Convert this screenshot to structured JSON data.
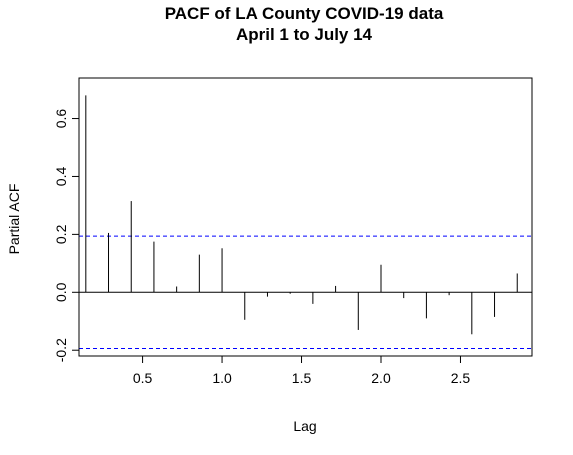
{
  "chart_data": {
    "type": "bar",
    "title_line1": "PACF of LA County COVID-19 data",
    "title_line2": "April 1 to July 14",
    "xlabel": "Lag",
    "ylabel": "Partial ACF",
    "xlim": [
      0.1,
      2.95
    ],
    "ylim": [
      -0.22,
      0.74
    ],
    "x_ticks": [
      0.5,
      1.0,
      1.5,
      2.0,
      2.5
    ],
    "x_tick_labels": [
      "0.5",
      "1.0",
      "1.5",
      "2.0",
      "2.5"
    ],
    "y_ticks": [
      -0.2,
      0.0,
      0.2,
      0.4,
      0.6
    ],
    "y_tick_labels": [
      "-0.2",
      "0.0",
      "0.2",
      "0.4",
      "0.6"
    ],
    "confidence_bound": 0.194,
    "confidence_color": "#0000ff",
    "lags": [
      0.1429,
      0.2857,
      0.4286,
      0.5714,
      0.7143,
      0.8571,
      1.0,
      1.1429,
      1.2857,
      1.4286,
      1.5714,
      1.7143,
      1.8571,
      2.0,
      2.1429,
      2.2857,
      2.4286,
      2.5714,
      2.7143,
      2.8571
    ],
    "values": [
      0.68,
      0.205,
      0.315,
      0.175,
      0.02,
      0.13,
      0.152,
      -0.095,
      -0.015,
      -0.005,
      -0.04,
      0.022,
      -0.13,
      0.095,
      -0.02,
      -0.09,
      -0.01,
      -0.145,
      -0.085,
      0.065
    ]
  }
}
